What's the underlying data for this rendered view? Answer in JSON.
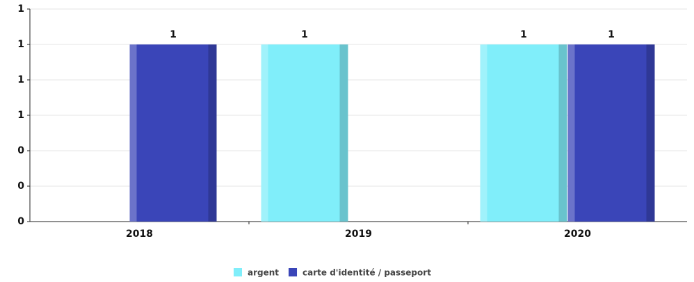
{
  "chart_data": {
    "type": "bar",
    "categories": [
      "2018",
      "2019",
      "2020"
    ],
    "series": [
      {
        "name": "argent",
        "color": "#80eefa",
        "values": [
          null,
          1,
          1
        ]
      },
      {
        "name": "carte d'identité / passeport",
        "color": "#3a45b8",
        "values": [
          1,
          null,
          1
        ]
      }
    ],
    "ylim": [
      0,
      1.2
    ],
    "yticks": [
      0,
      {
        "value": 0.2,
        "label": "0"
      },
      {
        "value": 0.4,
        "label": "0"
      },
      {
        "value": 0.6,
        "label": "1"
      },
      {
        "value": 0.8,
        "label": "1"
      },
      {
        "value": 1,
        "label": "1"
      },
      {
        "value": 1.2,
        "label": "1"
      }
    ],
    "grid": true,
    "legend": "bottom"
  }
}
